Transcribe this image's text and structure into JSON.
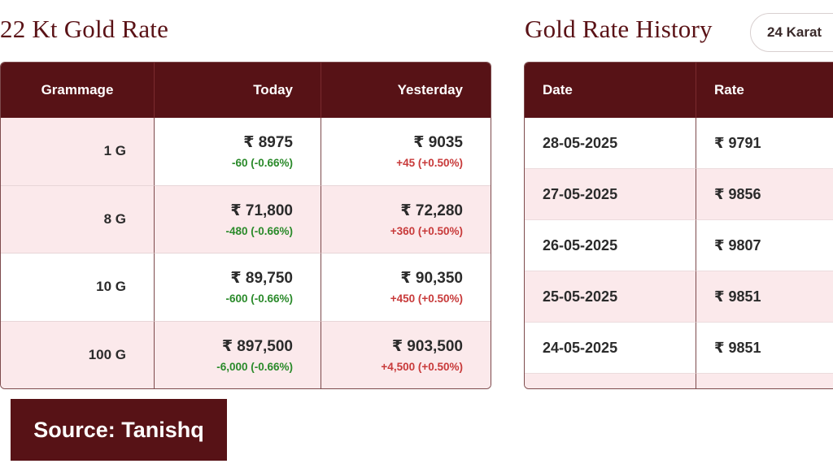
{
  "left": {
    "title": "22 Kt Gold Rate",
    "headers": [
      "Grammage",
      "Today",
      "Yesterday"
    ],
    "rows": [
      {
        "gram": "1 G",
        "today": "₹ 8975",
        "today_change": "-60 (-0.66%)",
        "yesterday": "₹ 9035",
        "yesterday_change": "+45 (+0.50%)"
      },
      {
        "gram": "8 G",
        "today": "₹ 71,800",
        "today_change": "-480 (-0.66%)",
        "yesterday": "₹ 72,280",
        "yesterday_change": "+360 (+0.50%)"
      },
      {
        "gram": "10 G",
        "today": "₹ 89,750",
        "today_change": "-600 (-0.66%)",
        "yesterday": "₹ 90,350",
        "yesterday_change": "+450 (+0.50%)"
      },
      {
        "gram": "100 G",
        "today": "₹ 897,500",
        "today_change": "-6,000 (-0.66%)",
        "yesterday": "₹ 903,500",
        "yesterday_change": "+4,500 (+0.50%)"
      }
    ]
  },
  "right": {
    "title": "Gold Rate History",
    "karat_selector": "24 Karat",
    "headers": [
      "Date",
      "Rate"
    ],
    "rows": [
      {
        "date": "28-05-2025",
        "rate": "₹ 9791"
      },
      {
        "date": "27-05-2025",
        "rate": "₹ 9856"
      },
      {
        "date": "26-05-2025",
        "rate": "₹ 9807"
      },
      {
        "date": "25-05-2025",
        "rate": "₹ 9851"
      },
      {
        "date": "24-05-2025",
        "rate": "₹ 9851"
      }
    ]
  },
  "source_label": "Source: Tanishq",
  "colors": {
    "header_bg": "#571216",
    "row_pink": "#fbe9eb",
    "negative": "#2a8a2a",
    "positive": "#c83a3a"
  }
}
